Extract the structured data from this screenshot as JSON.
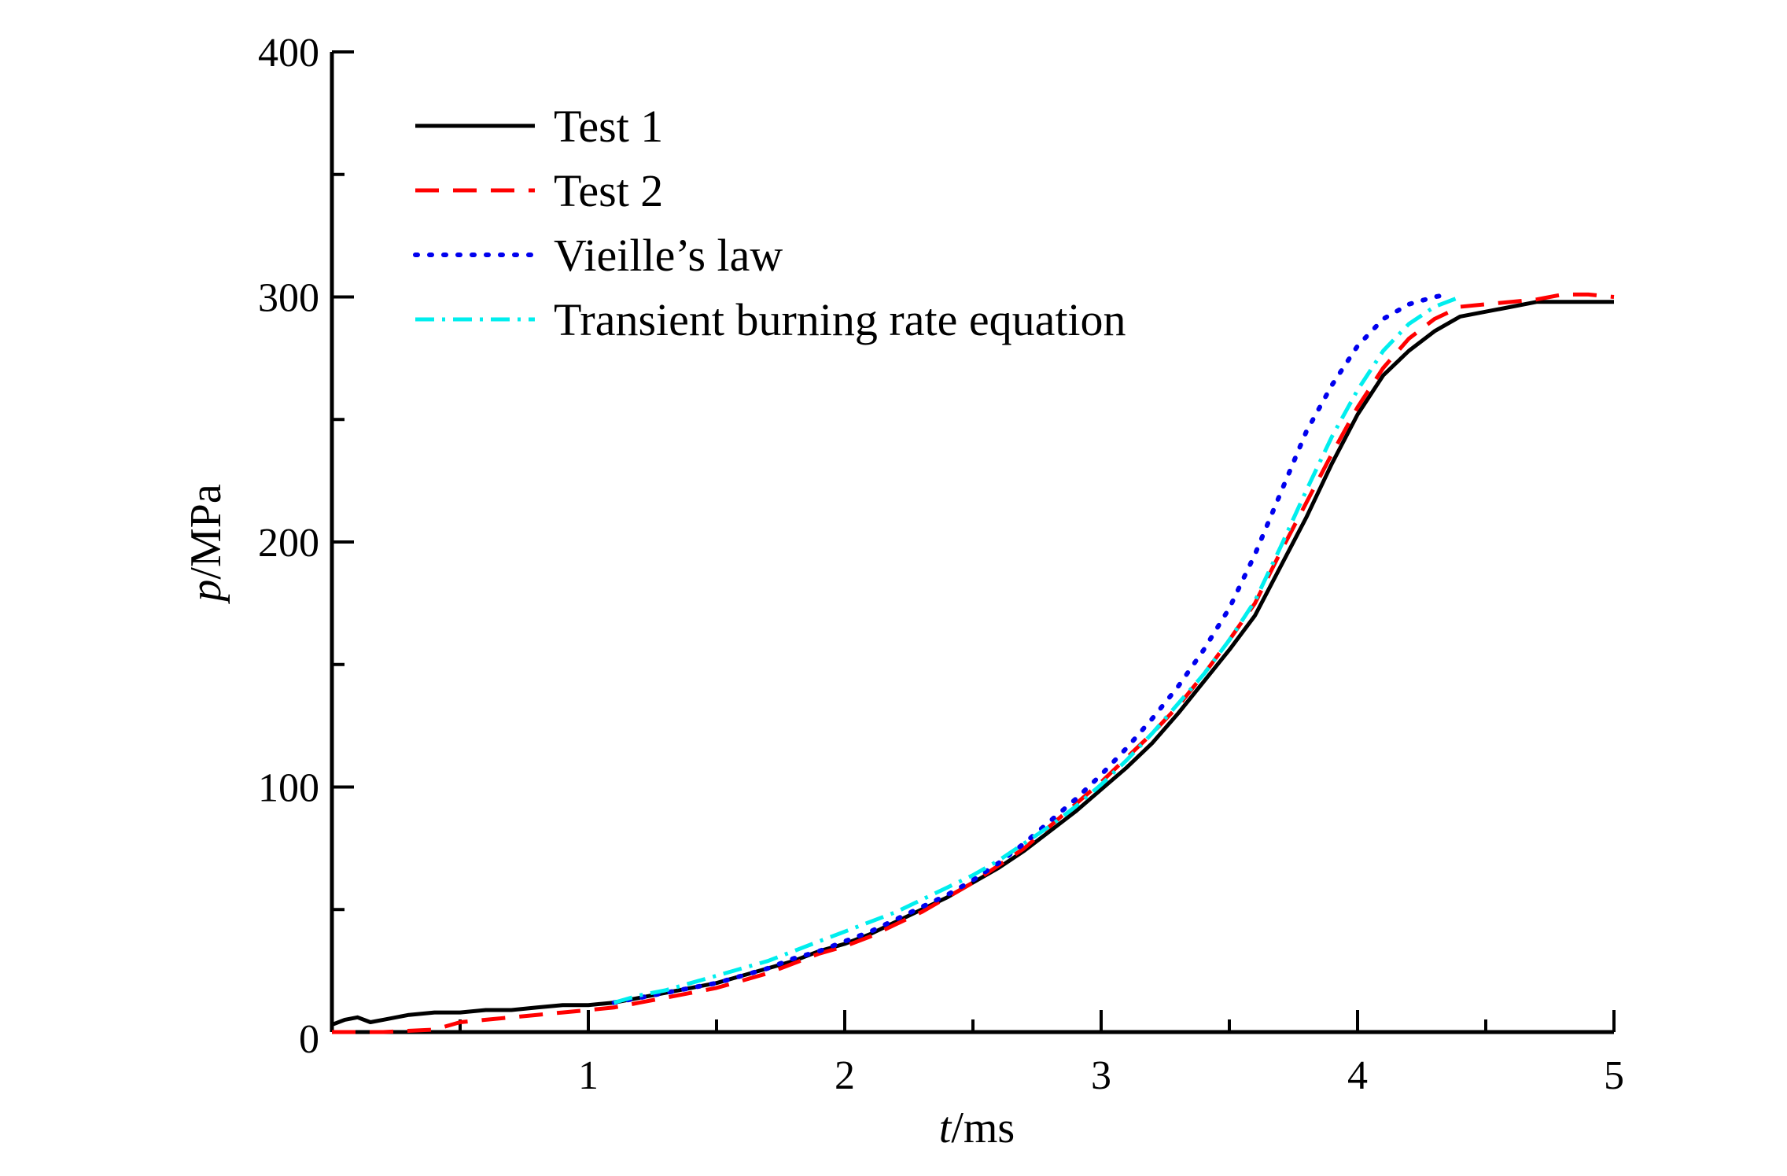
{
  "chart_data": {
    "type": "line",
    "xlabel_italic": "t",
    "xlabel_unit": "/ms",
    "ylabel_italic": "p",
    "ylabel_unit": "/MPa",
    "xlim": [
      0,
      5
    ],
    "ylim": [
      0,
      400
    ],
    "x_ticks": [
      1,
      2,
      3,
      4,
      5
    ],
    "x_tick_labels": [
      "1",
      "2",
      "3",
      "4",
      "5"
    ],
    "y_ticks": [
      0,
      100,
      200,
      300,
      400
    ],
    "y_tick_labels": [
      "0",
      "100",
      "200",
      "300",
      "400"
    ],
    "x_origin_label": "0",
    "grid": false,
    "legend_position": "top-left",
    "series": [
      {
        "name": "Test 1",
        "color": "#000000",
        "style": "solid",
        "x": [
          0,
          0.05,
          0.1,
          0.15,
          0.2,
          0.3,
          0.4,
          0.5,
          0.6,
          0.7,
          0.8,
          0.9,
          1.0,
          1.1,
          1.2,
          1.3,
          1.4,
          1.5,
          1.6,
          1.7,
          1.8,
          1.9,
          2.0,
          2.1,
          2.2,
          2.3,
          2.4,
          2.5,
          2.6,
          2.7,
          2.8,
          2.9,
          3.0,
          3.1,
          3.2,
          3.3,
          3.4,
          3.5,
          3.6,
          3.7,
          3.8,
          3.9,
          4.0,
          4.1,
          4.2,
          4.3,
          4.4,
          4.5,
          4.6,
          4.7,
          4.8,
          4.9,
          5.0
        ],
        "values": [
          3,
          5,
          6,
          4,
          5,
          7,
          8,
          8,
          9,
          9,
          10,
          11,
          11,
          12,
          14,
          16,
          18,
          20,
          23,
          26,
          29,
          33,
          36,
          40,
          45,
          50,
          55,
          61,
          67,
          74,
          82,
          90,
          99,
          108,
          118,
          130,
          143,
          156,
          170,
          190,
          210,
          232,
          252,
          268,
          278,
          286,
          292,
          294,
          296,
          298,
          298,
          298,
          298
        ]
      },
      {
        "name": "Test 2",
        "color": "#ff0000",
        "style": "dashed",
        "x": [
          0,
          0.2,
          0.4,
          0.5,
          0.6,
          0.7,
          0.8,
          0.9,
          1.0,
          1.1,
          1.2,
          1.3,
          1.4,
          1.5,
          1.6,
          1.7,
          1.8,
          1.9,
          2.0,
          2.1,
          2.2,
          2.3,
          2.4,
          2.5,
          2.6,
          2.7,
          2.8,
          2.9,
          3.0,
          3.1,
          3.2,
          3.3,
          3.4,
          3.5,
          3.6,
          3.7,
          3.8,
          3.9,
          4.0,
          4.1,
          4.2,
          4.3,
          4.4,
          4.5,
          4.6,
          4.7,
          4.8,
          4.9,
          5.0
        ],
        "values": [
          0,
          0,
          1,
          4,
          5,
          6,
          7,
          8,
          9,
          10,
          12,
          14,
          16,
          18,
          21,
          24,
          28,
          32,
          35,
          39,
          44,
          49,
          55,
          61,
          68,
          75,
          84,
          93,
          102,
          112,
          122,
          133,
          146,
          160,
          175,
          196,
          216,
          236,
          255,
          271,
          283,
          291,
          296,
          297,
          298,
          299,
          301,
          301,
          300
        ]
      },
      {
        "name": "Vieille’s law",
        "color": "#0000ee",
        "style": "dotted",
        "x": [
          1.1,
          1.2,
          1.3,
          1.4,
          1.5,
          1.6,
          1.7,
          1.8,
          1.9,
          2.0,
          2.1,
          2.2,
          2.3,
          2.4,
          2.5,
          2.6,
          2.7,
          2.8,
          2.9,
          3.0,
          3.1,
          3.2,
          3.3,
          3.4,
          3.5,
          3.6,
          3.7,
          3.8,
          3.9,
          4.0,
          4.1,
          4.2,
          4.3,
          4.35
        ],
        "values": [
          12,
          14,
          16,
          18,
          20,
          23,
          26,
          30,
          33,
          37,
          41,
          46,
          51,
          56,
          62,
          69,
          77,
          86,
          95,
          105,
          116,
          128,
          141,
          156,
          173,
          195,
          220,
          245,
          264,
          280,
          291,
          297,
          300,
          301
        ]
      },
      {
        "name": "Transient burning rate equation",
        "color": "#00eeee",
        "style": "dashdot",
        "x": [
          1.1,
          1.2,
          1.3,
          1.4,
          1.5,
          1.6,
          1.7,
          1.8,
          1.9,
          2.0,
          2.1,
          2.2,
          2.3,
          2.4,
          2.5,
          2.6,
          2.7,
          2.8,
          2.9,
          3.0,
          3.1,
          3.2,
          3.3,
          3.4,
          3.5,
          3.6,
          3.7,
          3.8,
          3.9,
          4.0,
          4.1,
          4.2,
          4.3,
          4.4
        ],
        "values": [
          12,
          15,
          17,
          20,
          23,
          26,
          29,
          33,
          37,
          41,
          45,
          49,
          54,
          59,
          64,
          70,
          77,
          84,
          92,
          101,
          111,
          122,
          134,
          146,
          160,
          176,
          198,
          221,
          243,
          262,
          278,
          289,
          296,
          300
        ]
      }
    ]
  }
}
